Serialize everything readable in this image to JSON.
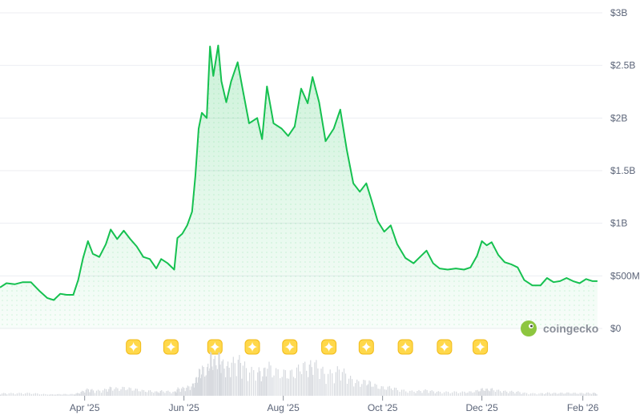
{
  "brand": {
    "name": "coingecko",
    "icon": "coingecko-gecko-icon"
  },
  "marker_icon": "sparkle-badge-icon",
  "chart_data": {
    "type": "area",
    "title": "",
    "xlabel": "",
    "ylabel": "",
    "y_axis_side": "right",
    "ylim": [
      0,
      3000000000
    ],
    "y_ticks": [
      {
        "value": 0,
        "label": "$0"
      },
      {
        "value": 500000000,
        "label": "$500M"
      },
      {
        "value": 1000000000,
        "label": "$1B"
      },
      {
        "value": 1500000000,
        "label": "$1.5B"
      },
      {
        "value": 2000000000,
        "label": "$2B"
      },
      {
        "value": 2500000000,
        "label": "$2.5B"
      },
      {
        "value": 3000000000,
        "label": "$3B"
      }
    ],
    "xlim": [
      "2025-02-08",
      "2026-02-12"
    ],
    "x_ticks": [
      {
        "date": "2025-04-01",
        "label": "Apr '25"
      },
      {
        "date": "2025-06-01",
        "label": "Jun '25"
      },
      {
        "date": "2025-08-01",
        "label": "Aug '25"
      },
      {
        "date": "2025-10-01",
        "label": "Oct '25"
      },
      {
        "date": "2025-12-01",
        "label": "Dec '25"
      },
      {
        "date": "2026-02-01",
        "label": "Feb '26"
      }
    ],
    "grid": true,
    "line_color": "#16c150",
    "fill_color": "#16c150",
    "series": [
      {
        "values": [
          [
            "2025-02-08",
            390000000
          ],
          [
            "2025-02-12",
            430000000
          ],
          [
            "2025-02-17",
            420000000
          ],
          [
            "2025-02-22",
            440000000
          ],
          [
            "2025-02-27",
            440000000
          ],
          [
            "2025-03-04",
            360000000
          ],
          [
            "2025-03-09",
            290000000
          ],
          [
            "2025-03-13",
            270000000
          ],
          [
            "2025-03-17",
            330000000
          ],
          [
            "2025-03-21",
            320000000
          ],
          [
            "2025-03-25",
            320000000
          ],
          [
            "2025-03-28",
            460000000
          ],
          [
            "2025-03-31",
            670000000
          ],
          [
            "2025-04-03",
            830000000
          ],
          [
            "2025-04-06",
            710000000
          ],
          [
            "2025-04-10",
            680000000
          ],
          [
            "2025-04-14",
            800000000
          ],
          [
            "2025-04-17",
            940000000
          ],
          [
            "2025-04-21",
            850000000
          ],
          [
            "2025-04-25",
            930000000
          ],
          [
            "2025-04-29",
            850000000
          ],
          [
            "2025-05-03",
            780000000
          ],
          [
            "2025-05-07",
            680000000
          ],
          [
            "2025-05-11",
            660000000
          ],
          [
            "2025-05-15",
            570000000
          ],
          [
            "2025-05-18",
            660000000
          ],
          [
            "2025-05-22",
            620000000
          ],
          [
            "2025-05-26",
            560000000
          ],
          [
            "2025-05-28",
            860000000
          ],
          [
            "2025-05-31",
            900000000
          ],
          [
            "2025-06-03",
            980000000
          ],
          [
            "2025-06-06",
            1110000000
          ],
          [
            "2025-06-08",
            1450000000
          ],
          [
            "2025-06-10",
            1900000000
          ],
          [
            "2025-06-12",
            2050000000
          ],
          [
            "2025-06-15",
            2000000000
          ],
          [
            "2025-06-17",
            2680000000
          ],
          [
            "2025-06-19",
            2400000000
          ],
          [
            "2025-06-22",
            2690000000
          ],
          [
            "2025-06-24",
            2350000000
          ],
          [
            "2025-06-27",
            2150000000
          ],
          [
            "2025-06-30",
            2350000000
          ],
          [
            "2025-07-04",
            2530000000
          ],
          [
            "2025-07-07",
            2280000000
          ],
          [
            "2025-07-11",
            1950000000
          ],
          [
            "2025-07-16",
            2000000000
          ],
          [
            "2025-07-19",
            1800000000
          ],
          [
            "2025-07-22",
            2300000000
          ],
          [
            "2025-07-26",
            1950000000
          ],
          [
            "2025-07-31",
            1900000000
          ],
          [
            "2025-08-04",
            1830000000
          ],
          [
            "2025-08-08",
            1920000000
          ],
          [
            "2025-08-12",
            2280000000
          ],
          [
            "2025-08-16",
            2140000000
          ],
          [
            "2025-08-19",
            2390000000
          ],
          [
            "2025-08-23",
            2150000000
          ],
          [
            "2025-08-27",
            1780000000
          ],
          [
            "2025-09-01",
            1900000000
          ],
          [
            "2025-09-05",
            2080000000
          ],
          [
            "2025-09-09",
            1700000000
          ],
          [
            "2025-09-13",
            1380000000
          ],
          [
            "2025-09-17",
            1300000000
          ],
          [
            "2025-09-21",
            1380000000
          ],
          [
            "2025-09-24",
            1230000000
          ],
          [
            "2025-09-28",
            1020000000
          ],
          [
            "2025-10-02",
            920000000
          ],
          [
            "2025-10-06",
            980000000
          ],
          [
            "2025-10-10",
            800000000
          ],
          [
            "2025-10-15",
            670000000
          ],
          [
            "2025-10-20",
            620000000
          ],
          [
            "2025-10-24",
            680000000
          ],
          [
            "2025-10-28",
            740000000
          ],
          [
            "2025-11-01",
            620000000
          ],
          [
            "2025-11-05",
            570000000
          ],
          [
            "2025-11-10",
            560000000
          ],
          [
            "2025-11-15",
            570000000
          ],
          [
            "2025-11-20",
            560000000
          ],
          [
            "2025-11-24",
            580000000
          ],
          [
            "2025-11-28",
            690000000
          ],
          [
            "2025-12-01",
            830000000
          ],
          [
            "2025-12-04",
            790000000
          ],
          [
            "2025-12-07",
            820000000
          ],
          [
            "2025-12-11",
            700000000
          ],
          [
            "2025-12-15",
            630000000
          ],
          [
            "2025-12-19",
            610000000
          ],
          [
            "2025-12-23",
            580000000
          ],
          [
            "2025-12-27",
            460000000
          ],
          [
            "2026-01-01",
            410000000
          ],
          [
            "2026-01-06",
            410000000
          ],
          [
            "2026-01-10",
            480000000
          ],
          [
            "2026-01-14",
            440000000
          ],
          [
            "2026-01-18",
            450000000
          ],
          [
            "2026-01-22",
            480000000
          ],
          [
            "2026-01-26",
            450000000
          ],
          [
            "2026-01-30",
            430000000
          ],
          [
            "2026-02-03",
            470000000
          ],
          [
            "2026-02-07",
            450000000
          ],
          [
            "2026-02-10",
            450000000
          ]
        ]
      }
    ],
    "event_markers": [
      "2025-05-01",
      "2025-05-24",
      "2025-06-20",
      "2025-07-13",
      "2025-08-05",
      "2025-08-29",
      "2025-09-21",
      "2025-10-15",
      "2025-11-08",
      "2025-11-30"
    ]
  }
}
